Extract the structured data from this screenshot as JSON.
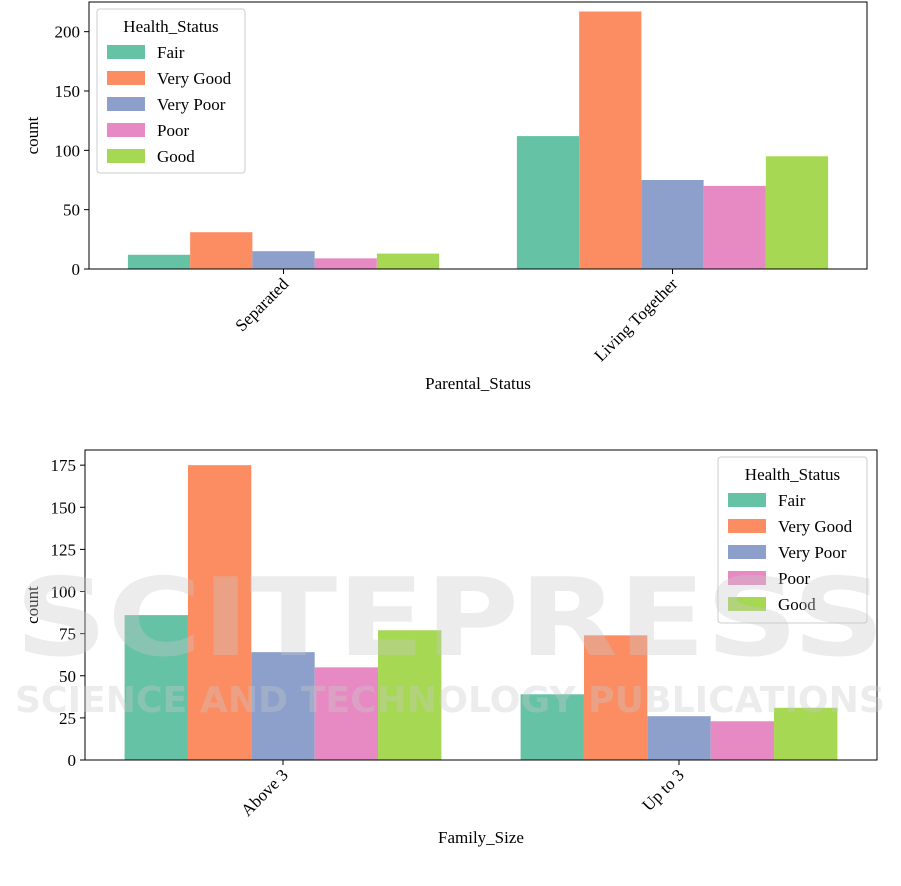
{
  "colors": {
    "Fair": "#66c2a5",
    "Very Good": "#fc8d62",
    "Very Poor": "#8da0cb",
    "Poor": "#e78ac3",
    "Good": "#a6d854"
  },
  "watermark": {
    "line1": "SCITEPRESS",
    "line2": "SCIENCE AND TECHNOLOGY PUBLICATIONS"
  },
  "chart_data": [
    {
      "type": "bar",
      "categories": [
        "Separated",
        "Living Together"
      ],
      "series": [
        {
          "name": "Fair",
          "values": [
            12,
            112
          ]
        },
        {
          "name": "Very Good",
          "values": [
            31,
            217
          ]
        },
        {
          "name": "Very Poor",
          "values": [
            15,
            75
          ]
        },
        {
          "name": "Poor",
          "values": [
            9,
            70
          ]
        },
        {
          "name": "Good",
          "values": [
            13,
            95
          ]
        }
      ],
      "title": "",
      "xlabel": "Parental_Status",
      "ylabel": "count",
      "ylim": [
        0,
        225
      ],
      "yticks": [
        0,
        50,
        100,
        150,
        200
      ],
      "legend": {
        "title": "Health_Status",
        "placement": "top-left"
      },
      "grid": false
    },
    {
      "type": "bar",
      "categories": [
        "Above 3",
        "Up to 3"
      ],
      "series": [
        {
          "name": "Fair",
          "values": [
            86,
            39
          ]
        },
        {
          "name": "Very Good",
          "values": [
            175,
            74
          ]
        },
        {
          "name": "Very Poor",
          "values": [
            64,
            26
          ]
        },
        {
          "name": "Poor",
          "values": [
            55,
            23
          ]
        },
        {
          "name": "Good",
          "values": [
            77,
            31
          ]
        }
      ],
      "title": "",
      "xlabel": "Family_Size",
      "ylabel": "count",
      "ylim": [
        0,
        184
      ],
      "yticks": [
        0,
        25,
        50,
        75,
        100,
        125,
        150,
        175
      ],
      "legend": {
        "title": "Health_Status",
        "placement": "top-right"
      },
      "grid": false
    }
  ]
}
